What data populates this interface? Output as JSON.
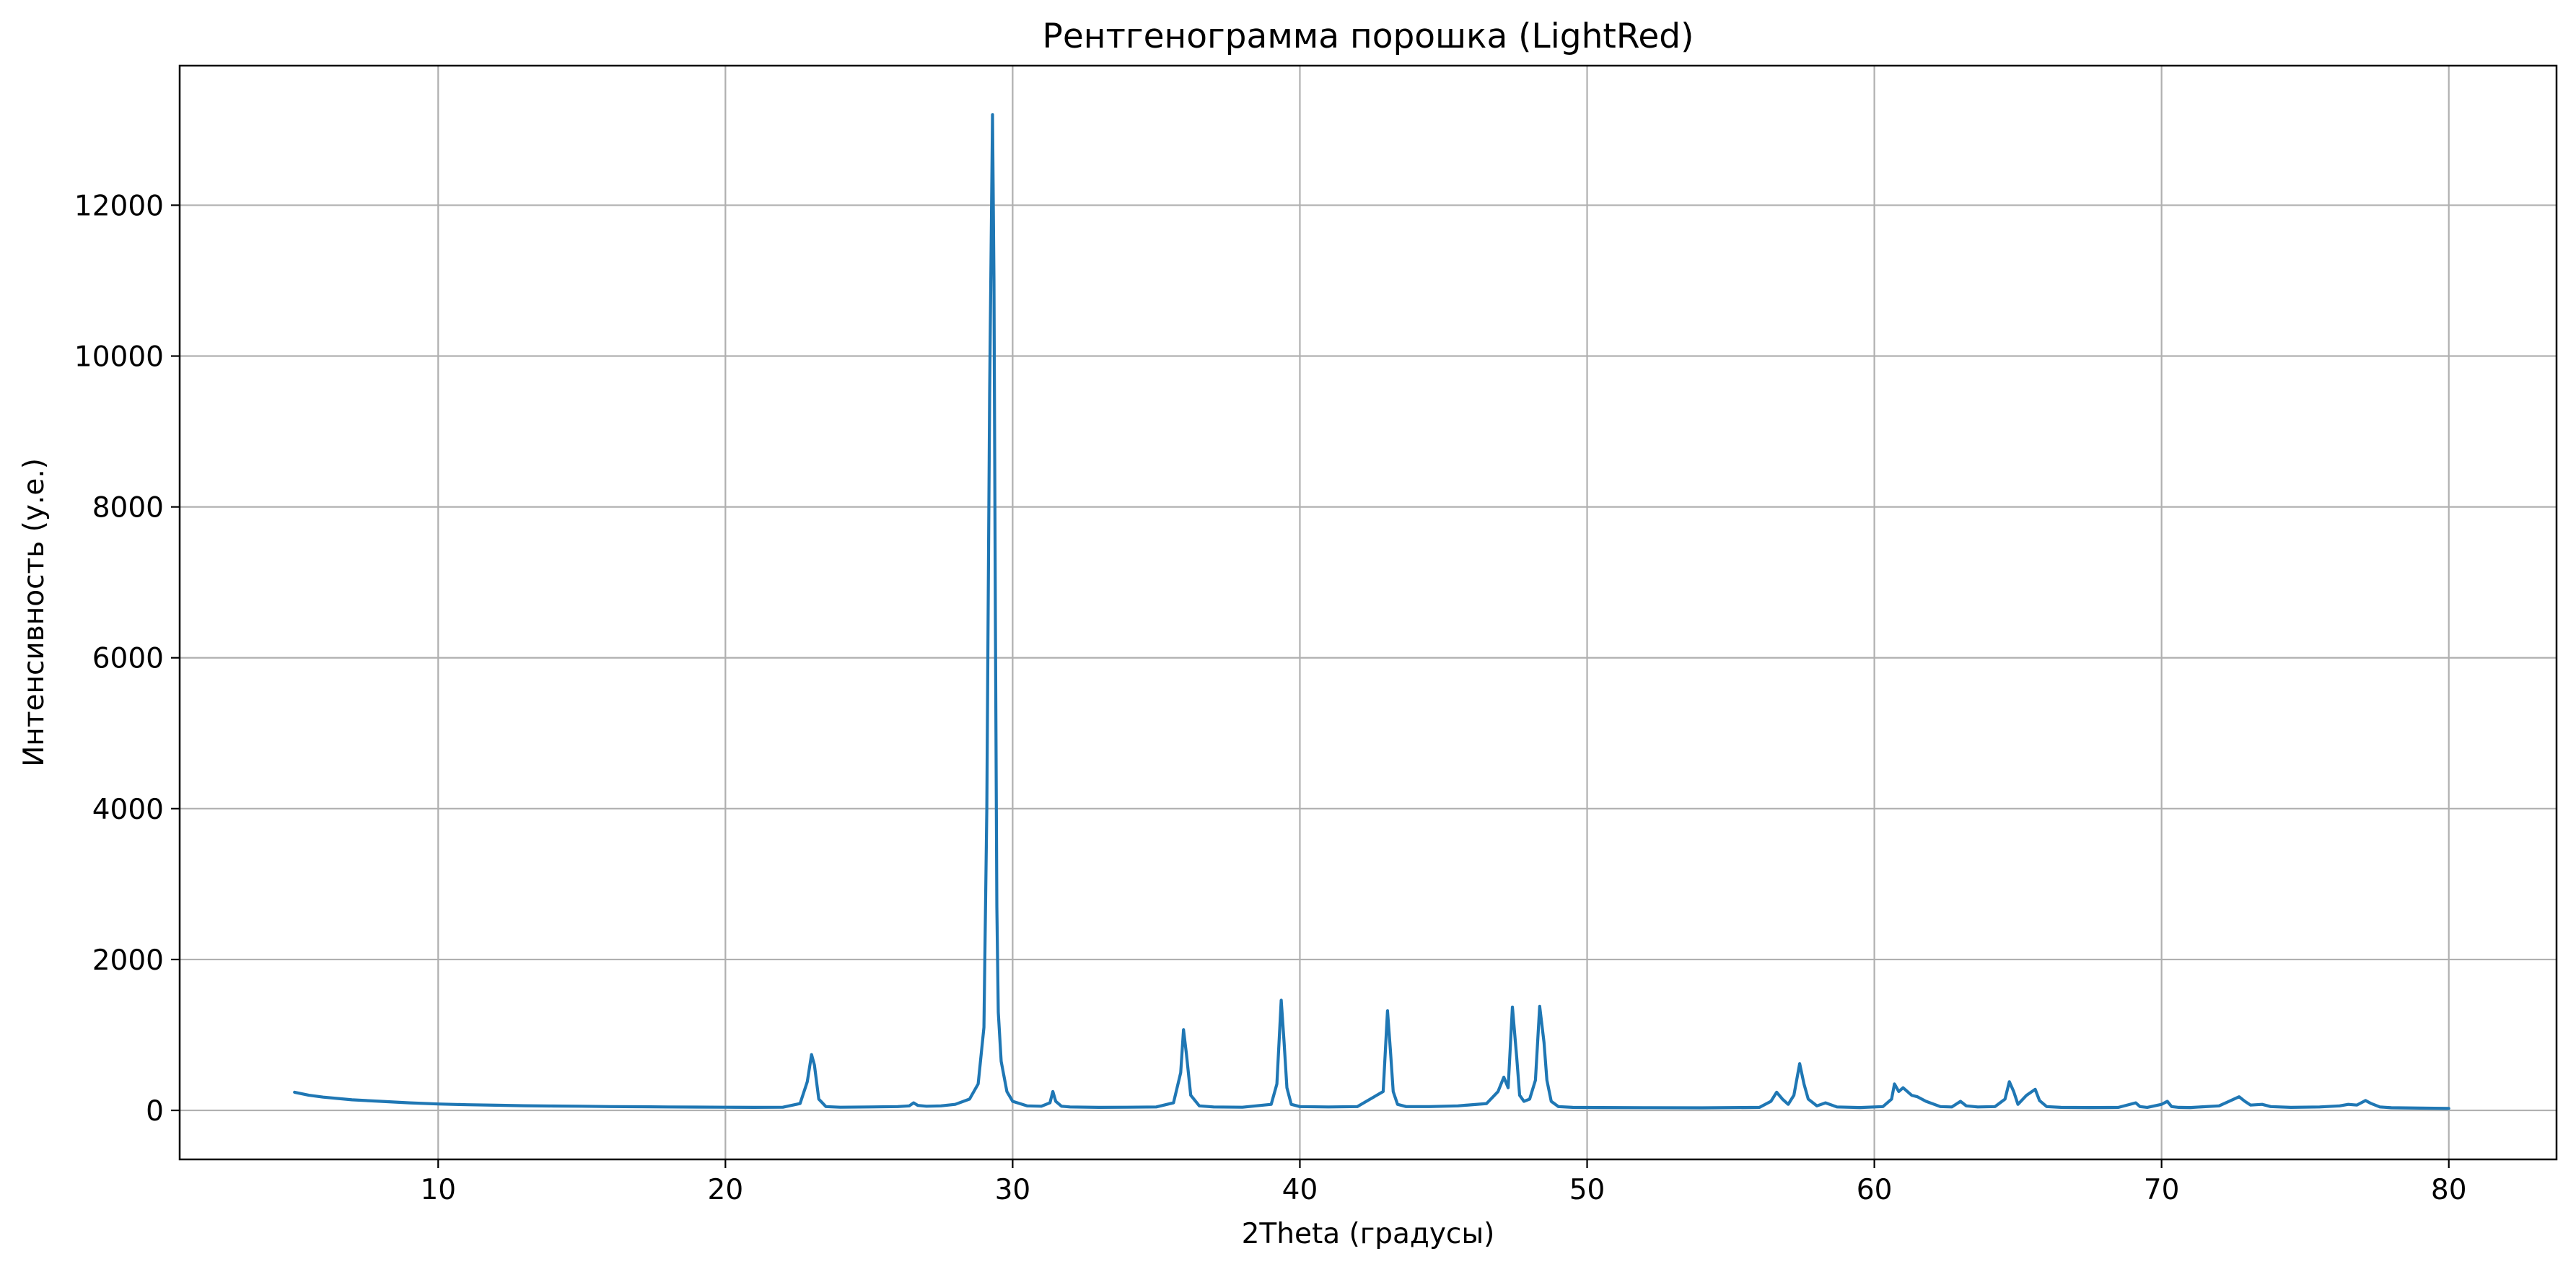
{
  "chart_data": {
    "type": "line",
    "title": "Рентгенограмма порошка (LightRed)",
    "xlabel": "2Theta (градусы)",
    "ylabel": "Интенсивность (у.е.)",
    "xlim": [
      1,
      83.75
    ],
    "ylim": [
      -650,
      13850
    ],
    "xticks": [
      10,
      20,
      30,
      40,
      50,
      60,
      70,
      80
    ],
    "yticks": [
      0,
      2000,
      4000,
      6000,
      8000,
      10000,
      12000
    ],
    "grid": true,
    "legend": "none",
    "line_color": "#1f77b4",
    "series": [
      {
        "x": [
          5.0,
          5.5,
          6.0,
          7.0,
          8.0,
          9.0,
          10.0,
          11.0,
          12.0,
          13.0,
          14.0,
          15.0,
          16.0,
          17.0,
          18.0,
          19.0,
          20.0,
          21.0,
          22.0,
          22.6,
          22.85,
          23.0,
          23.1,
          23.25,
          23.5,
          24.0,
          25.0,
          26.0,
          26.4,
          26.55,
          26.7,
          27.0,
          27.5,
          28.0,
          28.5,
          28.8,
          29.0,
          29.1,
          29.2,
          29.3,
          29.35,
          29.4,
          29.45,
          29.5,
          29.6,
          29.8,
          30.0,
          30.5,
          31.0,
          31.3,
          31.4,
          31.5,
          31.7,
          32.0,
          33.0,
          34.0,
          35.0,
          35.6,
          35.85,
          35.95,
          36.05,
          36.2,
          36.5,
          37.0,
          38.0,
          39.0,
          39.2,
          39.35,
          39.45,
          39.55,
          39.7,
          40.0,
          41.0,
          42.0,
          42.9,
          43.05,
          43.15,
          43.25,
          43.4,
          43.7,
          44.5,
          45.5,
          46.5,
          46.9,
          47.1,
          47.25,
          47.4,
          47.55,
          47.65,
          47.8,
          48.0,
          48.2,
          48.35,
          48.5,
          48.6,
          48.75,
          49.0,
          49.5,
          50.5,
          52.0,
          54.0,
          56.0,
          56.4,
          56.6,
          56.8,
          57.0,
          57.2,
          57.4,
          57.55,
          57.7,
          58.0,
          58.3,
          58.7,
          59.5,
          60.3,
          60.6,
          60.7,
          60.85,
          61.0,
          61.3,
          61.5,
          61.8,
          62.3,
          62.7,
          63.0,
          63.2,
          63.6,
          64.2,
          64.55,
          64.7,
          64.85,
          65.0,
          65.3,
          65.6,
          65.75,
          66.0,
          66.5,
          67.5,
          68.5,
          69.1,
          69.25,
          69.5,
          70.0,
          70.2,
          70.35,
          70.6,
          71.0,
          72.0,
          72.7,
          72.9,
          73.1,
          73.5,
          73.8,
          74.5,
          75.5,
          76.2,
          76.5,
          76.8,
          77.1,
          77.3,
          77.6,
          78.0,
          79.0,
          80.0
        ],
        "y": [
          240,
          200,
          175,
          140,
          120,
          100,
          85,
          75,
          68,
          62,
          58,
          55,
          50,
          48,
          45,
          43,
          42,
          40,
          42,
          90,
          380,
          740,
          600,
          150,
          50,
          42,
          45,
          50,
          60,
          100,
          65,
          55,
          60,
          80,
          150,
          350,
          1100,
          4000,
          9500,
          13200,
          11000,
          6500,
          2700,
          1300,
          650,
          250,
          120,
          60,
          55,
          100,
          250,
          120,
          55,
          45,
          40,
          42,
          45,
          100,
          500,
          1070,
          750,
          200,
          60,
          45,
          42,
          80,
          350,
          1460,
          900,
          300,
          80,
          50,
          45,
          50,
          250,
          1320,
          800,
          250,
          80,
          50,
          50,
          60,
          90,
          250,
          440,
          300,
          1370,
          700,
          200,
          120,
          150,
          400,
          1380,
          900,
          400,
          120,
          50,
          40,
          38,
          36,
          34,
          40,
          120,
          240,
          150,
          80,
          200,
          620,
          350,
          150,
          60,
          100,
          45,
          38,
          50,
          150,
          350,
          250,
          300,
          200,
          180,
          120,
          50,
          45,
          120,
          60,
          45,
          50,
          150,
          380,
          250,
          80,
          200,
          280,
          130,
          50,
          40,
          38,
          40,
          100,
          50,
          40,
          80,
          120,
          50,
          40,
          38,
          60,
          180,
          120,
          70,
          80,
          50,
          40,
          45,
          60,
          80,
          70,
          130,
          90,
          45,
          35,
          30,
          25
        ]
      }
    ]
  }
}
